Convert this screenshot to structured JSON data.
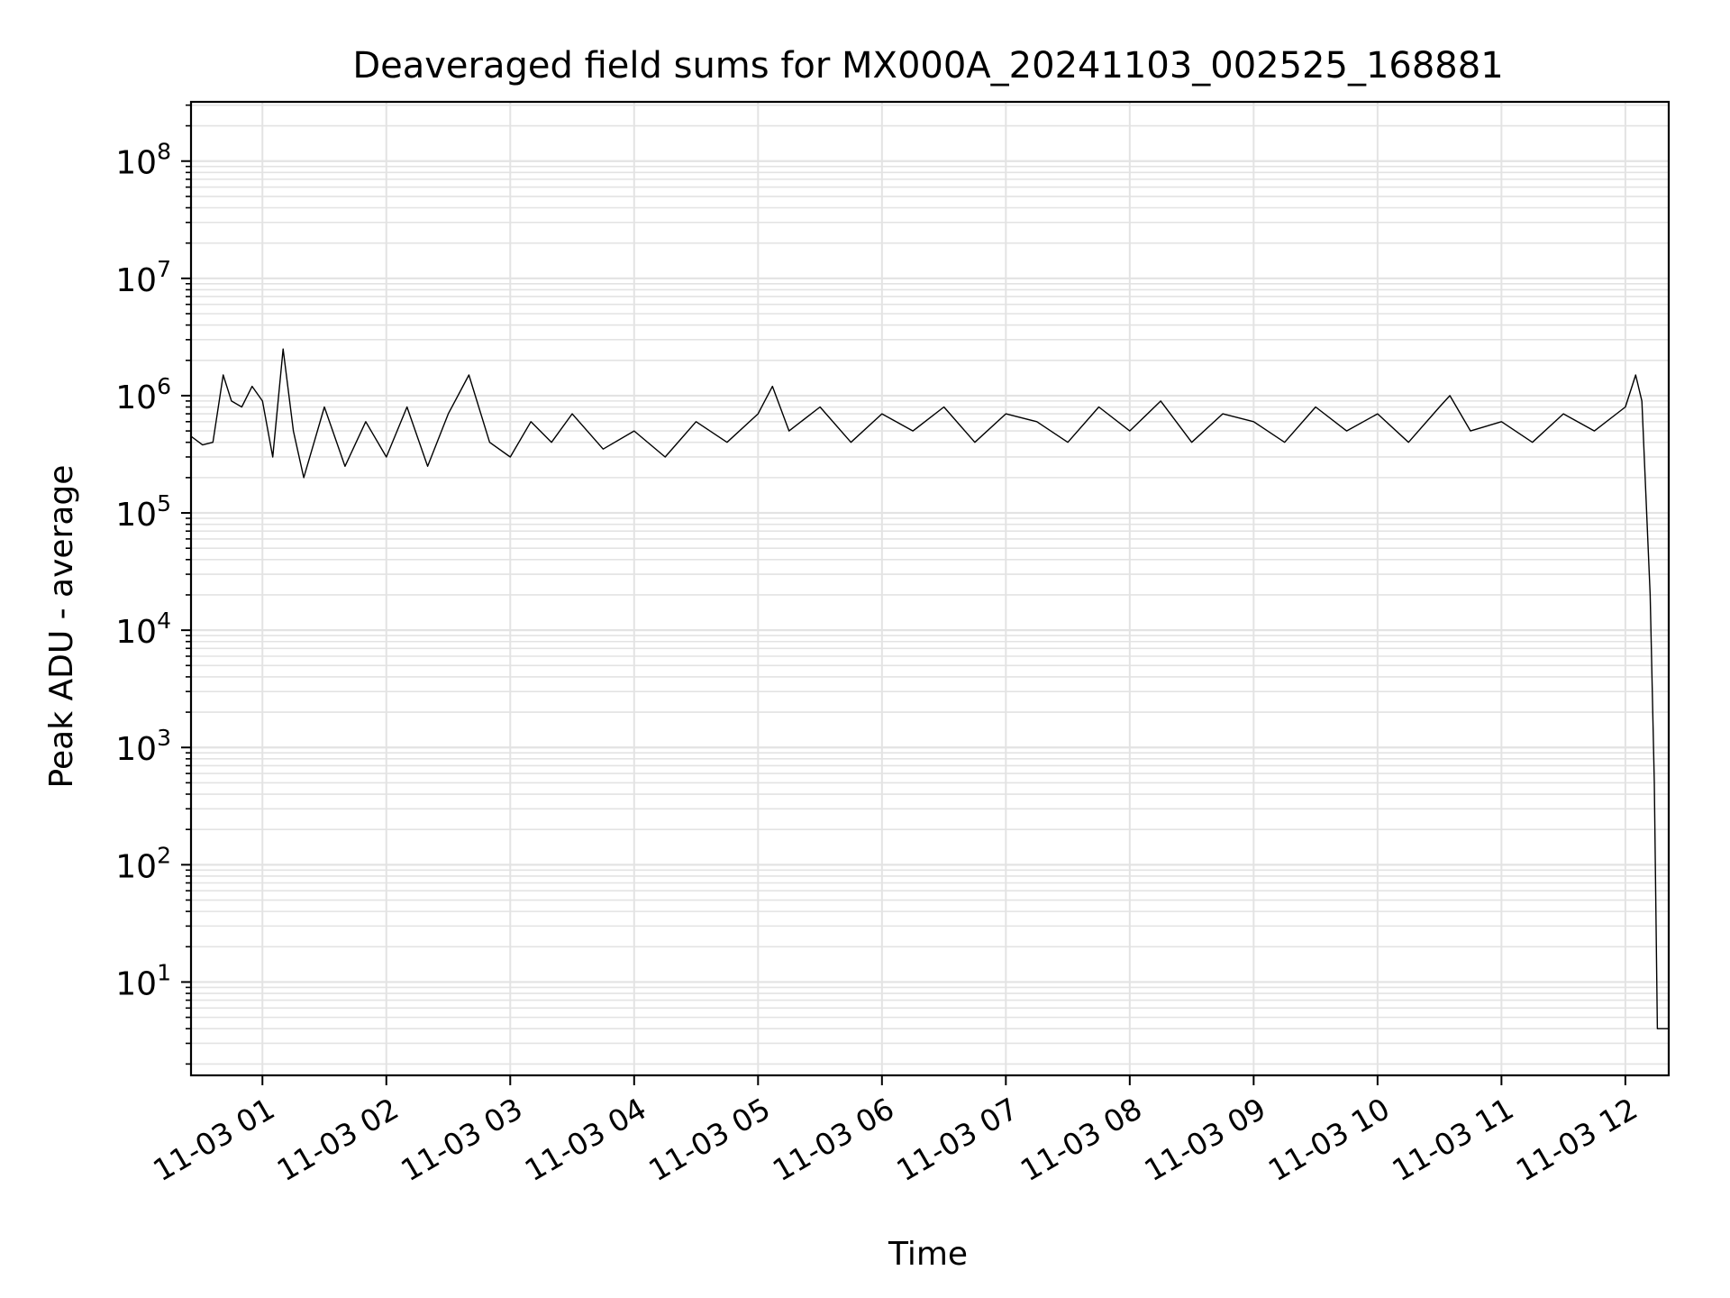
{
  "chart_data": {
    "type": "line",
    "title": "Deaveraged field sums for MX000A_20241103_002525_168881",
    "xlabel": "Time",
    "ylabel": "Peak ADU - average",
    "yscale": "log",
    "ylim": [
      1.6,
      320000000
    ],
    "xlim": [
      "2024-11-03 00:25:25",
      "2024-11-03 12:21:00"
    ],
    "grid": "major and minor, light gray",
    "legend": "none",
    "line_color": "#000000",
    "x_ticks": [
      {
        "value": "2024-11-03 01:00",
        "label": "11-03 01"
      },
      {
        "value": "2024-11-03 02:00",
        "label": "11-03 02"
      },
      {
        "value": "2024-11-03 03:00",
        "label": "11-03 03"
      },
      {
        "value": "2024-11-03 04:00",
        "label": "11-03 04"
      },
      {
        "value": "2024-11-03 05:00",
        "label": "11-03 05"
      },
      {
        "value": "2024-11-03 06:00",
        "label": "11-03 06"
      },
      {
        "value": "2024-11-03 07:00",
        "label": "11-03 07"
      },
      {
        "value": "2024-11-03 08:00",
        "label": "11-03 08"
      },
      {
        "value": "2024-11-03 09:00",
        "label": "11-03 09"
      },
      {
        "value": "2024-11-03 10:00",
        "label": "11-03 10"
      },
      {
        "value": "2024-11-03 11:00",
        "label": "11-03 11"
      },
      {
        "value": "2024-11-03 12:00",
        "label": "11-03 12"
      }
    ],
    "y_ticks": [
      {
        "value": 10,
        "base": "10",
        "exp": "1"
      },
      {
        "value": 100,
        "base": "10",
        "exp": "2"
      },
      {
        "value": 1000,
        "base": "10",
        "exp": "3"
      },
      {
        "value": 10000,
        "base": "10",
        "exp": "4"
      },
      {
        "value": 100000,
        "base": "10",
        "exp": "5"
      },
      {
        "value": 1000000,
        "base": "10",
        "exp": "6"
      },
      {
        "value": 10000000,
        "base": "10",
        "exp": "7"
      },
      {
        "value": 100000000,
        "base": "10",
        "exp": "8"
      }
    ],
    "series": [
      {
        "x": [
          "2024-11-03 00:25:25",
          "2024-11-03 00:31:00",
          "2024-11-03 00:36:00",
          "2024-11-03 00:41:00",
          "2024-11-03 00:45:00",
          "2024-11-03 00:50:00",
          "2024-11-03 00:55:00",
          "2024-11-03 01:00:00",
          "2024-11-03 01:05:00",
          "2024-11-03 01:10:00",
          "2024-11-03 01:15:00",
          "2024-11-03 01:20:00",
          "2024-11-03 01:25:00",
          "2024-11-03 01:30:00",
          "2024-11-03 01:40:00",
          "2024-11-03 01:50:00",
          "2024-11-03 02:00:00",
          "2024-11-03 02:10:00",
          "2024-11-03 02:20:00",
          "2024-11-03 02:30:00",
          "2024-11-03 02:40:00",
          "2024-11-03 02:50:00",
          "2024-11-03 03:00:00",
          "2024-11-03 03:10:00",
          "2024-11-03 03:20:00",
          "2024-11-03 03:30:00",
          "2024-11-03 03:45:00",
          "2024-11-03 04:00:00",
          "2024-11-03 04:15:00",
          "2024-11-03 04:30:00",
          "2024-11-03 04:45:00",
          "2024-11-03 05:00:00",
          "2024-11-03 05:07:00",
          "2024-11-03 05:15:00",
          "2024-11-03 05:30:00",
          "2024-11-03 05:45:00",
          "2024-11-03 06:00:00",
          "2024-11-03 06:15:00",
          "2024-11-03 06:30:00",
          "2024-11-03 06:45:00",
          "2024-11-03 07:00:00",
          "2024-11-03 07:15:00",
          "2024-11-03 07:30:00",
          "2024-11-03 07:45:00",
          "2024-11-03 08:00:00",
          "2024-11-03 08:15:00",
          "2024-11-03 08:30:00",
          "2024-11-03 08:45:00",
          "2024-11-03 09:00:00",
          "2024-11-03 09:15:00",
          "2024-11-03 09:30:00",
          "2024-11-03 09:45:00",
          "2024-11-03 10:00:00",
          "2024-11-03 10:15:00",
          "2024-11-03 10:30:00",
          "2024-11-03 10:35:00",
          "2024-11-03 10:45:00",
          "2024-11-03 11:00:00",
          "2024-11-03 11:15:00",
          "2024-11-03 11:30:00",
          "2024-11-03 11:45:00",
          "2024-11-03 12:00:00",
          "2024-11-03 12:05:00",
          "2024-11-03 12:08:00",
          "2024-11-03 12:12:00",
          "2024-11-03 12:14:00",
          "2024-11-03 12:15:30",
          "2024-11-03 12:17:00",
          "2024-11-03 12:21:00"
        ],
        "y": [
          450000,
          380000,
          400000,
          1500000,
          900000,
          800000,
          1200000,
          900000,
          300000,
          2500000,
          500000,
          200000,
          400000,
          800000,
          250000,
          600000,
          300000,
          800000,
          250000,
          700000,
          1500000,
          400000,
          300000,
          600000,
          400000,
          700000,
          350000,
          500000,
          300000,
          600000,
          400000,
          700000,
          1200000,
          500000,
          800000,
          400000,
          700000,
          500000,
          800000,
          400000,
          700000,
          600000,
          400000,
          800000,
          500000,
          900000,
          400000,
          700000,
          600000,
          400000,
          800000,
          500000,
          700000,
          400000,
          800000,
          1000000,
          500000,
          600000,
          400000,
          700000,
          500000,
          800000,
          1500000,
          900000,
          20000,
          500,
          4,
          4,
          4
        ]
      }
    ]
  }
}
